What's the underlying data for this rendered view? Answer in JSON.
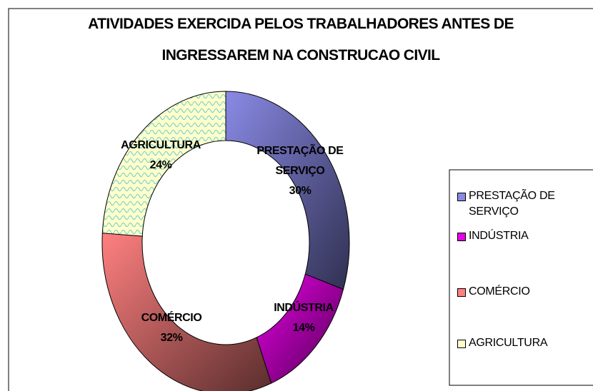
{
  "chart_data": {
    "type": "donut",
    "title": [
      "ATIVIDADES EXERCIDA PELOS TRABALHADORES ANTES DE",
      "INGRESSAREM NA CONSTRUCAO CIVIL"
    ],
    "categories": [
      "PRESTAÇÃO DE SERVIÇO",
      "INDÚSTRIA",
      "COMÉRCIO",
      "AGRICULTURA"
    ],
    "values": [
      30,
      14,
      32,
      24
    ],
    "value_labels": [
      "30%",
      "14%",
      "32%",
      "24%"
    ],
    "colors": [
      "#8a8ae6",
      "#e600e6",
      "#ff8080",
      "#ffffcc"
    ],
    "legend": "right"
  }
}
